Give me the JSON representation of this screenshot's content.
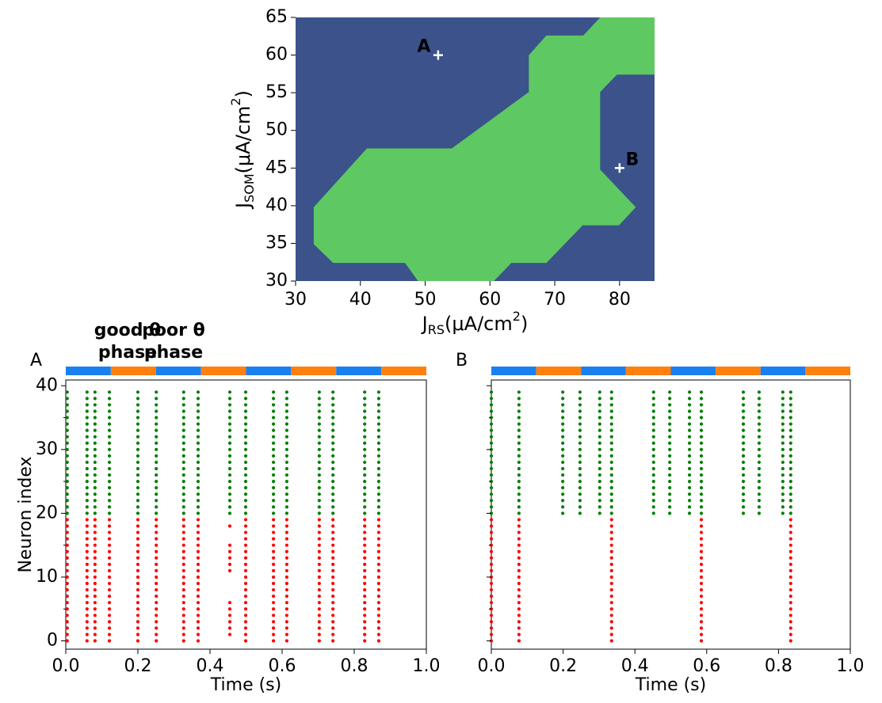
{
  "chart_data": [
    {
      "type": "region",
      "xlim": [
        30,
        85.4
      ],
      "ylim": [
        30,
        65
      ],
      "xticks": [
        30,
        40,
        50,
        60,
        70,
        80
      ],
      "yticks": [
        30,
        35,
        40,
        45,
        50,
        55,
        60,
        65
      ],
      "background": "#3b528b",
      "color": "#5ec962",
      "region_x": [
        32.8,
        32.8,
        35.8,
        46.9,
        48.9,
        60.6,
        63.3,
        68.7,
        74.3,
        79.9,
        82.5,
        77,
        77,
        79.6,
        85.4,
        85.4,
        77,
        74.4,
        68.7,
        66,
        66,
        54.1,
        41
      ],
      "region_y": [
        39.8,
        34.9,
        32.4,
        32.4,
        30,
        30,
        32.4,
        32.4,
        37.4,
        37.4,
        39.8,
        44.8,
        55.1,
        57.4,
        57.4,
        65,
        65,
        62.6,
        62.6,
        60,
        55.1,
        47.6,
        47.6
      ],
      "points": [
        {
          "label": "A",
          "x": 52,
          "y": 60
        },
        {
          "label": "B",
          "x": 80,
          "y": 45
        }
      ],
      "xlabel": {
        "symbol": "J",
        "sub": "RS",
        "unit": "(μA/cm",
        "sup": "2",
        "end": ")"
      },
      "ylabel": {
        "symbol": "J",
        "sub": "SOM",
        "unit": "(μA/cm",
        "sup": "2",
        "end": ")"
      }
    },
    {
      "type": "raster",
      "panel": "A",
      "xlim": [
        0,
        1
      ],
      "ylim": [
        -1.3,
        40.9
      ],
      "xticks": [
        {
          "value": 0,
          "label": "0.0"
        },
        {
          "value": 0.2,
          "label": "0.2"
        },
        {
          "value": 0.4,
          "label": "0.4"
        },
        {
          "value": 0.6,
          "label": "0.6"
        },
        {
          "value": 0.8,
          "label": "0.8"
        },
        {
          "value": 1,
          "label": "1.0"
        }
      ],
      "yticks": [
        0,
        10,
        20,
        30,
        40
      ],
      "yminorticks": [
        5,
        15,
        25,
        35
      ],
      "show_ytick_labels": true,
      "xlabel": "Time (s)",
      "ylabel": "Neuron index",
      "phase_edges": [
        0,
        0.125,
        0.25,
        0.375,
        0.5,
        0.625,
        0.75,
        0.875,
        1
      ],
      "phase_colors": [
        "#1a80f0",
        "#ff800e"
      ],
      "phase_legend": [
        {
          "lines": [
            "good θ",
            "phase"
          ],
          "color": "#1a80f0"
        },
        {
          "lines": [
            "poor θ",
            "phase"
          ],
          "color": "#ff800e"
        }
      ],
      "series": [
        {
          "color": "#008000",
          "events": [
            {
              "t": 0.004,
              "from": 20,
              "to": 39
            },
            {
              "t": 0.059,
              "from": 20,
              "to": 39
            },
            {
              "t": 0.081,
              "from": 20,
              "to": 39
            },
            {
              "t": 0.121,
              "from": 20,
              "to": 39
            },
            {
              "t": 0.2,
              "from": 20,
              "to": 39
            },
            {
              "t": 0.251,
              "from": 20,
              "to": 39
            },
            {
              "t": 0.327,
              "from": 20,
              "to": 39
            },
            {
              "t": 0.367,
              "from": 20,
              "to": 39
            },
            {
              "t": 0.455,
              "from": 20,
              "to": 39
            },
            {
              "t": 0.499,
              "from": 20,
              "to": 39
            },
            {
              "t": 0.576,
              "from": 20,
              "to": 39
            },
            {
              "t": 0.613,
              "from": 20,
              "to": 39
            },
            {
              "t": 0.703,
              "from": 20,
              "to": 39
            },
            {
              "t": 0.741,
              "from": 20,
              "to": 39
            },
            {
              "t": 0.829,
              "from": 20,
              "to": 39
            },
            {
              "t": 0.868,
              "from": 20,
              "to": 39
            }
          ]
        },
        {
          "color": "#ff0000",
          "events": [
            {
              "t": 0.004,
              "from": 0,
              "to": 19
            },
            {
              "t": 0.059,
              "from": 0,
              "to": 19
            },
            {
              "t": 0.081,
              "from": 0,
              "to": 19
            },
            {
              "t": 0.121,
              "from": 0,
              "to": 19
            },
            {
              "t": 0.2,
              "from": 0,
              "to": 19
            },
            {
              "t": 0.251,
              "from": 0,
              "to": 19
            },
            {
              "t": 0.327,
              "from": 0,
              "to": 19
            },
            {
              "t": 0.367,
              "from": 0,
              "to": 19
            },
            {
              "t": 0.455,
              "from": 18,
              "to": 18
            },
            {
              "t": 0.455,
              "from": 11,
              "to": 15
            },
            {
              "t": 0.455,
              "from": 1,
              "to": 6
            },
            {
              "t": 0.499,
              "from": 0,
              "to": 19
            },
            {
              "t": 0.576,
              "from": 0,
              "to": 19
            },
            {
              "t": 0.613,
              "from": 0,
              "to": 19
            },
            {
              "t": 0.703,
              "from": 0,
              "to": 19
            },
            {
              "t": 0.741,
              "from": 0,
              "to": 19
            },
            {
              "t": 0.829,
              "from": 0,
              "to": 19
            },
            {
              "t": 0.868,
              "from": 0,
              "to": 19
            }
          ]
        }
      ]
    },
    {
      "type": "raster",
      "panel": "B",
      "xlim": [
        0,
        1
      ],
      "ylim": [
        -1.3,
        40.9
      ],
      "xticks": [
        {
          "value": 0,
          "label": "0.0"
        },
        {
          "value": 0.2,
          "label": "0.2"
        },
        {
          "value": 0.4,
          "label": "0.4"
        },
        {
          "value": 0.6,
          "label": "0.6"
        },
        {
          "value": 0.8,
          "label": "0.8"
        },
        {
          "value": 1,
          "label": "1.0"
        }
      ],
      "yticks": [
        0,
        10,
        20,
        30,
        40
      ],
      "yminorticks": [
        5,
        15,
        25,
        35
      ],
      "show_ytick_labels": false,
      "xlabel": "Time (s)",
      "phase_edges": [
        0,
        0.125,
        0.25,
        0.375,
        0.5,
        0.625,
        0.75,
        0.875,
        1
      ],
      "phase_colors": [
        "#1a80f0",
        "#ff800e"
      ],
      "series": [
        {
          "color": "#008000",
          "events": [
            {
              "t": 0,
              "from": 20,
              "to": 39
            },
            {
              "t": 0.077,
              "from": 20,
              "to": 39
            },
            {
              "t": 0.199,
              "from": 20,
              "to": 39
            },
            {
              "t": 0.247,
              "from": 20,
              "to": 39
            },
            {
              "t": 0.302,
              "from": 20,
              "to": 39
            },
            {
              "t": 0.335,
              "from": 20,
              "to": 39
            },
            {
              "t": 0.452,
              "from": 20,
              "to": 39
            },
            {
              "t": 0.497,
              "from": 20,
              "to": 39
            },
            {
              "t": 0.552,
              "from": 20,
              "to": 39
            },
            {
              "t": 0.585,
              "from": 20,
              "to": 39
            },
            {
              "t": 0.702,
              "from": 20,
              "to": 39
            },
            {
              "t": 0.746,
              "from": 20,
              "to": 39
            },
            {
              "t": 0.812,
              "from": 20,
              "to": 39
            },
            {
              "t": 0.834,
              "from": 20,
              "to": 39
            }
          ]
        },
        {
          "color": "#ff0000",
          "events": [
            {
              "t": 0,
              "from": 0,
              "to": 19
            },
            {
              "t": 0.077,
              "from": 0,
              "to": 19
            },
            {
              "t": 0.335,
              "from": 0,
              "to": 19
            },
            {
              "t": 0.585,
              "from": 0,
              "to": 19
            },
            {
              "t": 0.834,
              "from": 0,
              "to": 19
            }
          ]
        }
      ]
    }
  ]
}
